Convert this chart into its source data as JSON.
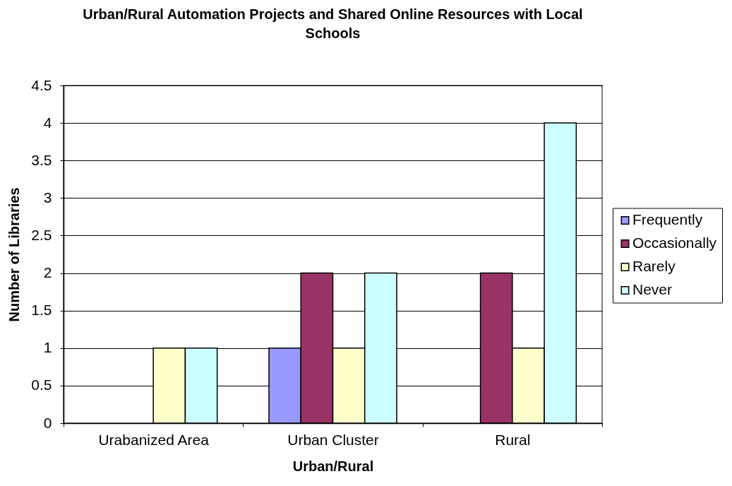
{
  "chart_data": {
    "type": "bar",
    "title": "Urban/Rural Automation Projects and Shared Online Resources with Local Schools",
    "xlabel": "Urban/Rural",
    "ylabel": "Number of Libraries",
    "categories": [
      "Urabanized Area",
      "Urban Cluster",
      "Rural"
    ],
    "series": [
      {
        "name": "Frequently",
        "color": "#9999ff",
        "values": [
          0,
          1,
          0
        ]
      },
      {
        "name": "Occasionally",
        "color": "#993366",
        "values": [
          0,
          2,
          2
        ]
      },
      {
        "name": "Rarely",
        "color": "#ffffcc",
        "values": [
          1,
          1,
          1
        ]
      },
      {
        "name": "Never",
        "color": "#ccffff",
        "values": [
          1,
          2,
          4
        ]
      }
    ],
    "ylim": [
      0,
      4.5
    ],
    "yticks": [
      0,
      0.5,
      1,
      1.5,
      2,
      2.5,
      3,
      3.5,
      4,
      4.5
    ],
    "grid": "y",
    "legend": "right"
  }
}
